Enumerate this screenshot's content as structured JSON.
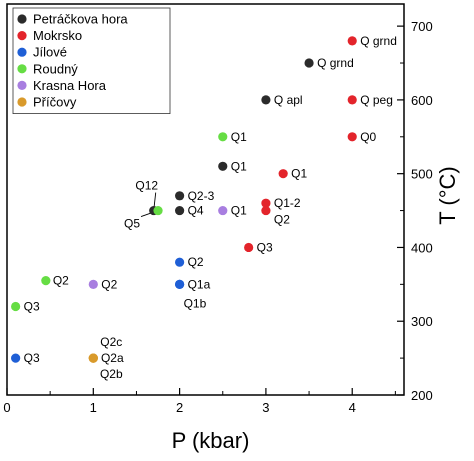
{
  "chart_data": {
    "type": "scatter",
    "xlabel": "P (kbar)",
    "ylabel": "T (°C)",
    "xlim": [
      0,
      4.6
    ],
    "ylim": [
      200,
      730
    ],
    "x_ticks": [
      0,
      1,
      2,
      3,
      4
    ],
    "y_ticks": [
      200,
      300,
      400,
      500,
      600,
      700
    ],
    "grid": false,
    "legend_position": "top-left",
    "y_axis_side": "right",
    "series": [
      {
        "name": "Petráčkova hora",
        "color": "#2b2b2b",
        "points": [
          {
            "x": 3.5,
            "y": 650,
            "label": "Q grnd"
          },
          {
            "x": 3.0,
            "y": 600,
            "label": "Q apl"
          },
          {
            "x": 2.5,
            "y": 510,
            "label": "Q1"
          },
          {
            "x": 2.0,
            "y": 470,
            "label": "Q2-3"
          },
          {
            "x": 2.0,
            "y": 450,
            "label": "Q4"
          },
          {
            "x": 1.7,
            "y": 450,
            "label": "Q12"
          }
        ]
      },
      {
        "name": "Mokrsko",
        "color": "#e3242b",
        "points": [
          {
            "x": 4.0,
            "y": 680,
            "label": "Q grnd"
          },
          {
            "x": 4.0,
            "y": 600,
            "label": "Q peg"
          },
          {
            "x": 4.0,
            "y": 550,
            "label": "Q0"
          },
          {
            "x": 3.2,
            "y": 500,
            "label": "Q1"
          },
          {
            "x": 3.0,
            "y": 460,
            "label": "Q1-2"
          },
          {
            "x": 3.0,
            "y": 450,
            "label": "Q2"
          },
          {
            "x": 2.8,
            "y": 400,
            "label": "Q3"
          }
        ]
      },
      {
        "name": "Jílové",
        "color": "#1f5fd6",
        "points": [
          {
            "x": 2.0,
            "y": 380,
            "label": "Q2"
          },
          {
            "x": 2.0,
            "y": 350,
            "label": "Q1a"
          },
          {
            "x": 2.0,
            "y": 350,
            "label": "Q1b"
          },
          {
            "x": 0.1,
            "y": 250,
            "label": "Q3"
          }
        ]
      },
      {
        "name": "Roudný",
        "color": "#66dd44",
        "points": [
          {
            "x": 2.5,
            "y": 550,
            "label": "Q1"
          },
          {
            "x": 1.75,
            "y": 450,
            "label": "Q5"
          },
          {
            "x": 0.45,
            "y": 355,
            "label": "Q2"
          },
          {
            "x": 0.1,
            "y": 320,
            "label": "Q3"
          }
        ]
      },
      {
        "name": "Krasna Hora",
        "color": "#a87ee0",
        "points": [
          {
            "x": 2.5,
            "y": 450,
            "label": "Q1"
          },
          {
            "x": 1.0,
            "y": 350,
            "label": "Q2"
          }
        ]
      },
      {
        "name": "Příčovy",
        "color": "#d99a2b",
        "points": [
          {
            "x": 1.0,
            "y": 250,
            "label": "Q2c"
          },
          {
            "x": 1.0,
            "y": 250,
            "label": "Q2a"
          },
          {
            "x": 1.0,
            "y": 250,
            "label": "Q2b"
          }
        ]
      }
    ]
  }
}
